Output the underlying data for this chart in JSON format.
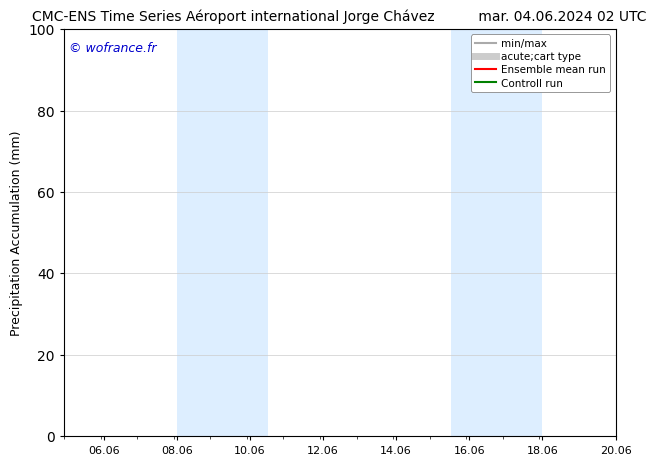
{
  "title_left": "CMC-ENS Time Series Aéroport international Jorge Chávez",
  "title_right": "mar. 04.06.2024 02 UTC",
  "ylabel": "Precipitation Accumulation (mm)",
  "ylim": [
    0,
    100
  ],
  "yticks": [
    0,
    20,
    40,
    60,
    80,
    100
  ],
  "xlim": [
    3.917,
    16.417
  ],
  "xtick_labels": [
    "06.06",
    "08.06",
    "10.06",
    "12.06",
    "14.06",
    "16.06",
    "18.06",
    "20.06"
  ],
  "xtick_positions": [
    5,
    7,
    9,
    11,
    13,
    15,
    17,
    19
  ],
  "shaded_bands": [
    {
      "x_start": 7.0,
      "x_end": 9.5
    },
    {
      "x_start": 14.5,
      "x_end": 17.0
    }
  ],
  "shaded_color": "#ddeeff",
  "watermark_text": "© wofrance.fr",
  "watermark_color": "#0000cc",
  "legend_items": [
    {
      "label": "min/max",
      "color": "#aaaaaa",
      "lw": 1.5,
      "ls": "-"
    },
    {
      "label": "acute;cart type",
      "color": "#cccccc",
      "lw": 6,
      "ls": "-"
    },
    {
      "label": "Ensemble mean run",
      "color": "red",
      "lw": 1.5,
      "ls": "-"
    },
    {
      "label": "Controll run",
      "color": "green",
      "lw": 1.5,
      "ls": "-"
    }
  ],
  "bg_color": "white",
  "grid_color": "#cccccc",
  "title_fontsize": 10,
  "axis_label_fontsize": 9,
  "tick_fontsize": 8,
  "watermark_fontsize": 9,
  "legend_fontsize": 7.5
}
